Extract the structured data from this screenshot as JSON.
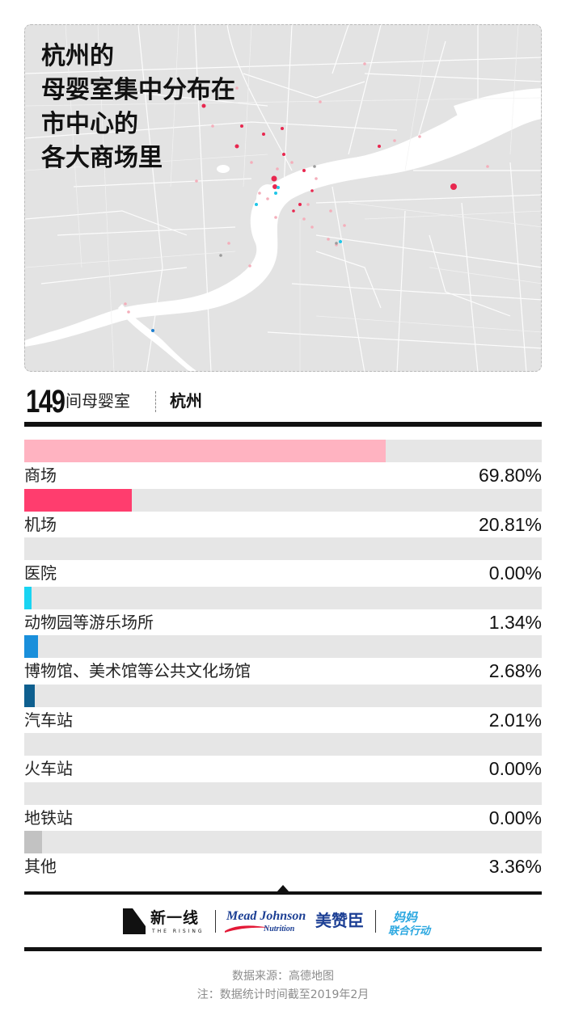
{
  "map": {
    "title_lines": [
      "杭州的",
      "母婴室集中分布在",
      "市中心的",
      "各大商场里"
    ],
    "colors": {
      "land": "#e3e3e3",
      "river": "#ffffff",
      "roads": "#ffffff",
      "dot_pink": "#f4aeba",
      "dot_red": "#e8274f",
      "dot_cyan": "#1fc6e8",
      "dot_blue": "#1e7fd0",
      "dot_gray": "#9a9a9a"
    }
  },
  "header": {
    "count": "149",
    "count_label": "间母婴室",
    "city": "杭州"
  },
  "chart_data": {
    "type": "bar",
    "orientation": "horizontal",
    "xlim": [
      0,
      100
    ],
    "categories": [
      "商场",
      "机场",
      "医院",
      "动物园等游乐场所",
      "博物馆、美术馆等公共文化场馆",
      "汽车站",
      "火车站",
      "地铁站",
      "其他"
    ],
    "values": [
      69.8,
      20.81,
      0.0,
      1.34,
      2.68,
      2.01,
      0.0,
      0.0,
      3.36
    ],
    "value_labels": [
      "69.80%",
      "20.81%",
      "0.00%",
      "1.34%",
      "2.68%",
      "2.01%",
      "0.00%",
      "0.00%",
      "3.36%"
    ],
    "colors": [
      "#ffb3c1",
      "#ff3d6e",
      "#e6e6e6",
      "#19d4f2",
      "#1a8fdb",
      "#0e5f8f",
      "#e6e6e6",
      "#e6e6e6",
      "#c2c2c2"
    ],
    "track_color": "#e6e6e6"
  },
  "logos": {
    "xyx_name": "新一线",
    "xyx_sub": "THE RISING",
    "mj_main": "Mead Johnson",
    "mj_sub": "Nutrition",
    "mzc": "美赞臣",
    "mm_top": "妈妈",
    "mm_bottom": "联合行动"
  },
  "footer": {
    "source": "数据来源：高德地图",
    "note": "注：数据统计时间截至2019年2月"
  }
}
